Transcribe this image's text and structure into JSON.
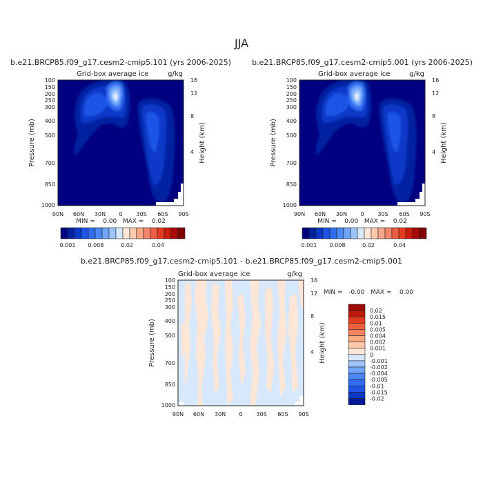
{
  "page": {
    "title": "JJA"
  },
  "panels": [
    {
      "id": "case1",
      "title": "b.e21.BRCP85.f09_g17.cesm2-cmip5.101 (yrs 2006-2025)",
      "subtitle_left": "Grid-box average ice",
      "subtitle_right": "g/kg",
      "ylabel": "Pressure (mb)",
      "y2label": "Height (km)",
      "stats": "MIN =    0.00   MAX =    0.02"
    },
    {
      "id": "case2",
      "title": "b.e21.BRCP85.f09_g17.cesm2-cmip5.001 (yrs 2006-2025)",
      "subtitle_left": "Grid-box average ice",
      "subtitle_right": "g/kg",
      "ylabel": "Pressure (mb)",
      "y2label": "Height (km)",
      "stats": "MIN =    0.00   MAX =    0.02"
    },
    {
      "id": "diff",
      "title": "b.e21.BRCP85.f09_g17.cesm2-cmip5.101 - b.e21.BRCP85.f09_g17.cesm2-cmip5.001",
      "subtitle_left": "Grid-box average ice",
      "subtitle_right": "g/kg",
      "ylabel": "Pressure (mb)",
      "y2label": "Height (km)",
      "stats": "MIN =   -0.00   MAX =    0.00"
    }
  ],
  "colorbar_top": {
    "labels": [
      "0.001",
      "0.008",
      "0.02",
      "0.04"
    ],
    "colors": [
      "#000080",
      "#0020a0",
      "#0a37c8",
      "#1e55e6",
      "#2f6cf0",
      "#4b87f5",
      "#6ea5fa",
      "#9cc4fb",
      "#d8e8fc",
      "#fde6d6",
      "#fcc9ad",
      "#f8a888",
      "#f3836a",
      "#ef5d45",
      "#e43a22",
      "#cc1a0d",
      "#a80a08",
      "#820404"
    ]
  },
  "colorbar_diff": {
    "labels": [
      "0.02",
      "0.015",
      "0.01",
      "0.005",
      "0.004",
      "0.002",
      "0.001",
      "0",
      "-0.001",
      "-0.002",
      "-0.004",
      "-0.005",
      "-0.01",
      "-0.015",
      "-0.02"
    ],
    "colors": [
      "#9c0a05",
      "#c01a0c",
      "#e23a1e",
      "#f2603e",
      "#f6845e",
      "#faa882",
      "#fcc9ac",
      "#fde6d6",
      "#d8e8fc",
      "#9ec5fb",
      "#6ea5fa",
      "#4b87f5",
      "#2f6cf0",
      "#1e55e6",
      "#0a37c8",
      "#001a99"
    ]
  },
  "chart_data": [
    {
      "type": "heatmap",
      "panel": "case1",
      "x_ticks": [
        "90N",
        "60N",
        "30N",
        "0",
        "30S",
        "60S",
        "90S"
      ],
      "y_ticks": [
        100,
        150,
        200,
        250,
        300,
        400,
        500,
        700,
        850,
        1000
      ],
      "y2_ticks": [
        16,
        12,
        8,
        4
      ],
      "xlim": [
        "90N",
        "90S"
      ],
      "ylim": [
        1000,
        100
      ],
      "y_scale": "log",
      "features": [
        {
          "lat": 10,
          "p": 200,
          "max_g_per_kg": 0.008
        },
        {
          "lat": 55,
          "p": 250,
          "max_g_per_kg": 0.004
        },
        {
          "lat": -50,
          "p": 500,
          "max_g_per_kg": 0.003
        }
      ]
    },
    {
      "type": "heatmap",
      "panel": "case2",
      "x_ticks": [
        "90N",
        "60N",
        "30N",
        "0",
        "30S",
        "60S",
        "90S"
      ],
      "y_ticks": [
        100,
        150,
        200,
        250,
        300,
        400,
        500,
        700,
        850,
        1000
      ],
      "y2_ticks": [
        16,
        12,
        8,
        4
      ],
      "xlim": [
        "90N",
        "90S"
      ],
      "ylim": [
        1000,
        100
      ],
      "y_scale": "log",
      "features": [
        {
          "lat": 10,
          "p": 200,
          "max_g_per_kg": 0.008
        },
        {
          "lat": 55,
          "p": 250,
          "max_g_per_kg": 0.004
        },
        {
          "lat": -50,
          "p": 500,
          "max_g_per_kg": 0.003
        }
      ]
    },
    {
      "type": "heatmap",
      "panel": "diff",
      "x_ticks": [
        "90N",
        "60N",
        "30N",
        "0",
        "30S",
        "60S",
        "90S"
      ],
      "y_ticks": [
        100,
        150,
        200,
        250,
        300,
        400,
        500,
        700,
        850,
        1000
      ],
      "y2_ticks": [
        16,
        12,
        8,
        4
      ],
      "xlim": [
        "90N",
        "90S"
      ],
      "ylim": [
        1000,
        100
      ],
      "y_scale": "log",
      "values_range": [
        -0.001,
        0.001
      ]
    }
  ]
}
